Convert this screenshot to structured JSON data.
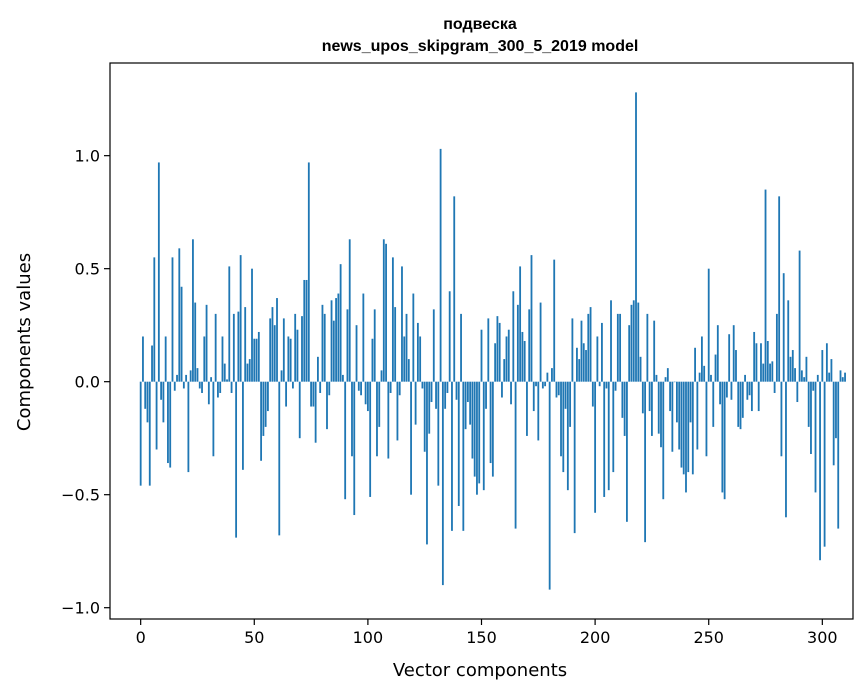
{
  "chart_data": {
    "type": "bar",
    "title": "подвеска",
    "subtitle": "news_upos_skipgram_300_5_2019 model",
    "xlabel": "Vector components",
    "ylabel": "Components values",
    "xlim": [
      -13.5,
      313.5
    ],
    "ylim": [
      -1.05,
      1.41
    ],
    "xticks": [
      0,
      50,
      100,
      150,
      200,
      250,
      300
    ],
    "xtick_labels": [
      "0",
      "50",
      "100",
      "150",
      "200",
      "250",
      "300"
    ],
    "yticks": [
      -1.0,
      -0.5,
      0.0,
      0.5,
      1.0
    ],
    "ytick_labels": [
      "−1.0",
      "−0.5",
      "0.0",
      "0.5",
      "1.0"
    ],
    "grid": false,
    "bar_color": "#1f77b4",
    "values": [
      -0.46,
      0.2,
      -0.12,
      -0.18,
      -0.46,
      0.16,
      0.55,
      -0.3,
      0.97,
      -0.08,
      -0.18,
      0.2,
      -0.36,
      -0.38,
      0.55,
      -0.04,
      0.03,
      0.59,
      0.42,
      -0.03,
      0.03,
      -0.4,
      0.05,
      0.63,
      0.35,
      0.06,
      -0.03,
      -0.05,
      0.2,
      0.34,
      -0.1,
      0.02,
      -0.33,
      0.3,
      -0.07,
      -0.05,
      0.2,
      0.08,
      0.01,
      0.51,
      -0.05,
      0.3,
      -0.69,
      0.31,
      0.56,
      -0.39,
      0.33,
      0.08,
      0.1,
      0.5,
      0.19,
      0.19,
      0.22,
      -0.35,
      -0.24,
      -0.2,
      -0.13,
      0.28,
      0.33,
      0.25,
      0.37,
      -0.68,
      0.05,
      0.28,
      -0.11,
      0.2,
      0.19,
      -0.03,
      0.3,
      0.23,
      -0.25,
      0.29,
      0.45,
      0.45,
      0.97,
      -0.11,
      -0.11,
      -0.27,
      0.11,
      -0.05,
      0.34,
      0.3,
      -0.21,
      -0.06,
      0.36,
      0.27,
      0.37,
      0.39,
      0.52,
      0.03,
      -0.52,
      0.32,
      0.63,
      -0.33,
      -0.59,
      0.25,
      -0.04,
      -0.06,
      0.39,
      -0.1,
      -0.13,
      -0.51,
      0.19,
      0.32,
      -0.33,
      -0.2,
      0.05,
      0.63,
      0.61,
      -0.34,
      -0.05,
      0.55,
      0.33,
      -0.26,
      -0.06,
      0.51,
      0.2,
      0.3,
      0.1,
      -0.5,
      0.39,
      -0.19,
      0.26,
      0.2,
      -0.03,
      -0.31,
      -0.72,
      -0.23,
      -0.09,
      0.32,
      -0.12,
      -0.46,
      1.03,
      -0.9,
      -0.12,
      -0.05,
      0.4,
      -0.66,
      0.82,
      -0.08,
      -0.55,
      0.3,
      -0.66,
      -0.21,
      -0.09,
      -0.19,
      -0.34,
      -0.42,
      -0.5,
      -0.45,
      0.23,
      -0.48,
      -0.12,
      0.28,
      -0.36,
      -0.42,
      0.17,
      0.29,
      0.26,
      -0.07,
      0.1,
      0.2,
      0.23,
      -0.1,
      0.4,
      -0.65,
      0.34,
      0.51,
      0.22,
      0.18,
      -0.24,
      0.32,
      0.56,
      -0.13,
      -0.02,
      -0.26,
      0.35,
      -0.03,
      -0.02,
      0.04,
      -0.92,
      0.06,
      0.54,
      -0.07,
      -0.06,
      -0.33,
      -0.4,
      -0.12,
      -0.48,
      -0.2,
      0.28,
      -0.67,
      0.15,
      0.1,
      0.27,
      0.17,
      0.14,
      0.3,
      0.33,
      -0.11,
      -0.58,
      0.2,
      -0.02,
      0.26,
      -0.51,
      -0.03,
      -0.48,
      0.36,
      -0.4,
      -0.04,
      0.3,
      0.3,
      -0.16,
      -0.24,
      -0.62,
      0.25,
      0.34,
      0.36,
      1.28,
      0.35,
      0.11,
      -0.14,
      -0.71,
      0.3,
      -0.13,
      -0.24,
      0.27,
      0.03,
      -0.23,
      -0.29,
      -0.52,
      0.02,
      0.06,
      -0.13,
      -0.31,
      0.0,
      -0.18,
      -0.3,
      -0.38,
      -0.41,
      -0.49,
      -0.4,
      -0.18,
      -0.41,
      0.15,
      -0.3,
      0.04,
      0.2,
      0.07,
      -0.33,
      0.5,
      0.03,
      -0.2,
      0.12,
      0.25,
      -0.1,
      -0.49,
      -0.52,
      -0.07,
      0.21,
      -0.08,
      0.25,
      0.14,
      -0.2,
      -0.21,
      -0.16,
      0.03,
      -0.08,
      -0.06,
      -0.13,
      0.22,
      0.17,
      -0.13,
      0.17,
      0.08,
      0.85,
      0.18,
      0.08,
      0.09,
      -0.05,
      0.3,
      0.82,
      -0.33,
      0.48,
      -0.6,
      0.36,
      0.11,
      0.14,
      0.06,
      -0.09,
      0.58,
      0.05,
      0.02,
      0.11,
      -0.2,
      -0.32,
      -0.04,
      -0.49,
      0.03,
      -0.79,
      0.14,
      -0.73,
      0.17,
      0.04,
      0.1,
      -0.37,
      -0.25,
      -0.65,
      0.05,
      0.02,
      0.04
    ]
  }
}
